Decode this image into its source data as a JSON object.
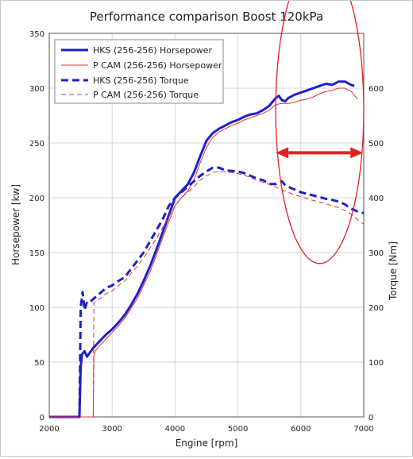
{
  "chart_data": {
    "type": "line",
    "title": "Performance comparison Boost 120kPa",
    "xlabel": "Engine [rpm]",
    "ylabel": "Horsepower [kw]",
    "y2label": "Torque [Nm]",
    "xlim": [
      2000,
      7000
    ],
    "ylim": [
      0,
      350
    ],
    "y2lim": [
      0,
      700
    ],
    "x_ticks": [
      2000,
      3000,
      4000,
      5000,
      6000,
      7000
    ],
    "y_ticks": [
      0,
      50,
      100,
      150,
      200,
      250,
      300,
      350
    ],
    "y2_ticks": [
      0,
      100,
      200,
      300,
      400,
      500,
      600
    ],
    "grid": true,
    "legend_position": "top-left",
    "series": [
      {
        "name": "HKS (256-256) Horsepower",
        "axis": "left",
        "color": "#1f1fc8",
        "style": "solid",
        "width": 3,
        "x": [
          2000,
          2480,
          2500,
          2520,
          2560,
          2600,
          2650,
          2700,
          2800,
          2900,
          3000,
          3100,
          3200,
          3300,
          3400,
          3500,
          3600,
          3700,
          3800,
          3900,
          4000,
          4100,
          4200,
          4300,
          4400,
          4500,
          4600,
          4700,
          4800,
          4900,
          5000,
          5100,
          5200,
          5300,
          5400,
          5500,
          5600,
          5650,
          5700,
          5750,
          5800,
          5900,
          6000,
          6100,
          6200,
          6300,
          6400,
          6500,
          6600,
          6650,
          6700,
          6800,
          6850
        ],
        "y": [
          0,
          0,
          45,
          57,
          60,
          55,
          59,
          63,
          69,
          75,
          80,
          86,
          93,
          102,
          112,
          124,
          137,
          152,
          168,
          184,
          200,
          206,
          212,
          223,
          238,
          252,
          259,
          263,
          266,
          269,
          271,
          274,
          276,
          277,
          280,
          284,
          291,
          293,
          289,
          288,
          291,
          294,
          296,
          298,
          300,
          302,
          304,
          303,
          306,
          306,
          306,
          303,
          302
        ]
      },
      {
        "name": "P CAM (256-256) Horsepower",
        "axis": "left",
        "color": "#e03030",
        "style": "solid",
        "width": 1,
        "x": [
          2000,
          2700,
          2710,
          2730,
          2800,
          2900,
          3000,
          3100,
          3200,
          3300,
          3400,
          3500,
          3600,
          3700,
          3800,
          3900,
          4000,
          4100,
          4200,
          4300,
          4400,
          4500,
          4600,
          4700,
          4800,
          4900,
          5000,
          5100,
          5200,
          5300,
          5400,
          5500,
          5600,
          5700,
          5800,
          5900,
          6000,
          6100,
          6200,
          6300,
          6400,
          6500,
          6600,
          6700,
          6800,
          6900
        ],
        "y": [
          0,
          0,
          55,
          60,
          65,
          71,
          77,
          83,
          90,
          99,
          108,
          120,
          132,
          147,
          163,
          178,
          193,
          200,
          206,
          216,
          232,
          246,
          255,
          260,
          263,
          266,
          268,
          271,
          273,
          275,
          277,
          280,
          285,
          286,
          286,
          287,
          289,
          290,
          292,
          295,
          297,
          298,
          300,
          300,
          297,
          290
        ]
      },
      {
        "name": "HKS (256-256) Torque",
        "axis": "right",
        "color": "#1f1fc8",
        "style": "dash",
        "width": 3,
        "x": [
          2480,
          2500,
          2530,
          2560,
          2600,
          2650,
          2700,
          2800,
          2900,
          3000,
          3100,
          3200,
          3300,
          3400,
          3500,
          3600,
          3700,
          3800,
          3900,
          4000,
          4100,
          4200,
          4300,
          4400,
          4500,
          4600,
          4700,
          4800,
          4900,
          5000,
          5100,
          5200,
          5300,
          5400,
          5500,
          5600,
          5700,
          5750,
          5800,
          5900,
          6000,
          6100,
          6200,
          6300,
          6400,
          6500,
          6600,
          6700,
          6800,
          6900,
          7000
        ],
        "y": [
          0,
          200,
          228,
          195,
          210,
          210,
          215,
          225,
          235,
          240,
          248,
          255,
          270,
          285,
          300,
          320,
          340,
          360,
          385,
          400,
          410,
          420,
          430,
          440,
          448,
          455,
          455,
          450,
          449,
          448,
          445,
          440,
          435,
          432,
          425,
          425,
          430,
          423,
          420,
          415,
          410,
          407,
          404,
          401,
          398,
          396,
          393,
          388,
          380,
          375,
          372
        ]
      },
      {
        "name": "P CAM (256-256) Torque",
        "axis": "right",
        "color": "#e03030",
        "style": "dash",
        "width": 1,
        "x": [
          2700,
          2710,
          2800,
          2900,
          3000,
          3100,
          3200,
          3300,
          3400,
          3500,
          3600,
          3700,
          3800,
          3900,
          4000,
          4100,
          4200,
          4300,
          4400,
          4500,
          4600,
          4700,
          4800,
          4900,
          5000,
          5100,
          5200,
          5300,
          5400,
          5500,
          5600,
          5700,
          5800,
          5900,
          6000,
          6100,
          6200,
          6300,
          6400,
          6500,
          6600,
          6700,
          6800,
          6900,
          7000
        ],
        "y": [
          0,
          208,
          215,
          225,
          230,
          240,
          248,
          262,
          275,
          290,
          308,
          325,
          345,
          365,
          385,
          400,
          410,
          420,
          432,
          440,
          446,
          448,
          447,
          446,
          444,
          441,
          437,
          432,
          428,
          424,
          420,
          414,
          410,
          405,
          402,
          398,
          395,
          392,
          389,
          385,
          382,
          377,
          370,
          360,
          352
        ]
      }
    ],
    "annotations": [
      {
        "type": "ellipse",
        "color": "#e02020",
        "center_rpm": 6300,
        "center_hp": 280,
        "half_width_rpm": 700,
        "half_height_hp": 140
      },
      {
        "type": "double-arrow",
        "color": "#e02020",
        "from_rpm": 5600,
        "to_rpm": 6990,
        "at_hp": 241
      }
    ]
  }
}
